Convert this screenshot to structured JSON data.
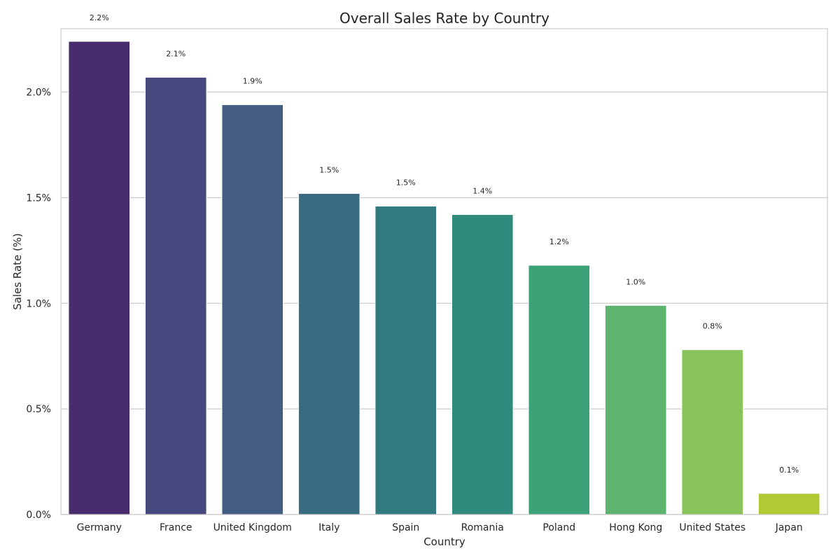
{
  "chart_data": {
    "type": "bar",
    "title": "Overall Sales Rate by Country",
    "xlabel": "Country",
    "ylabel": "Sales Rate (%)",
    "ylim": [
      0,
      2.3
    ],
    "yticks": [
      0,
      0.5,
      1.0,
      1.5,
      2.0
    ],
    "ytick_labels": [
      "0.0%",
      "0.5%",
      "1.0%",
      "1.5%",
      "2.0%"
    ],
    "categories": [
      "Germany",
      "France",
      "United Kingdom",
      "Italy",
      "Spain",
      "Romania",
      "Poland",
      "Hong Kong",
      "United States",
      "Japan"
    ],
    "values": [
      2.24,
      2.07,
      1.94,
      1.52,
      1.46,
      1.42,
      1.18,
      0.99,
      0.78,
      0.1
    ],
    "data_labels": [
      "2.2%",
      "2.1%",
      "1.9%",
      "1.5%",
      "1.5%",
      "1.4%",
      "1.2%",
      "1.0%",
      "0.8%",
      "0.1%"
    ],
    "colors": [
      "#472d6b",
      "#47497e",
      "#435c82",
      "#386b80",
      "#317a80",
      "#2f8b7c",
      "#3ba177",
      "#5db46e",
      "#88c45a",
      "#b2c935"
    ],
    "grid": "horizontal"
  }
}
